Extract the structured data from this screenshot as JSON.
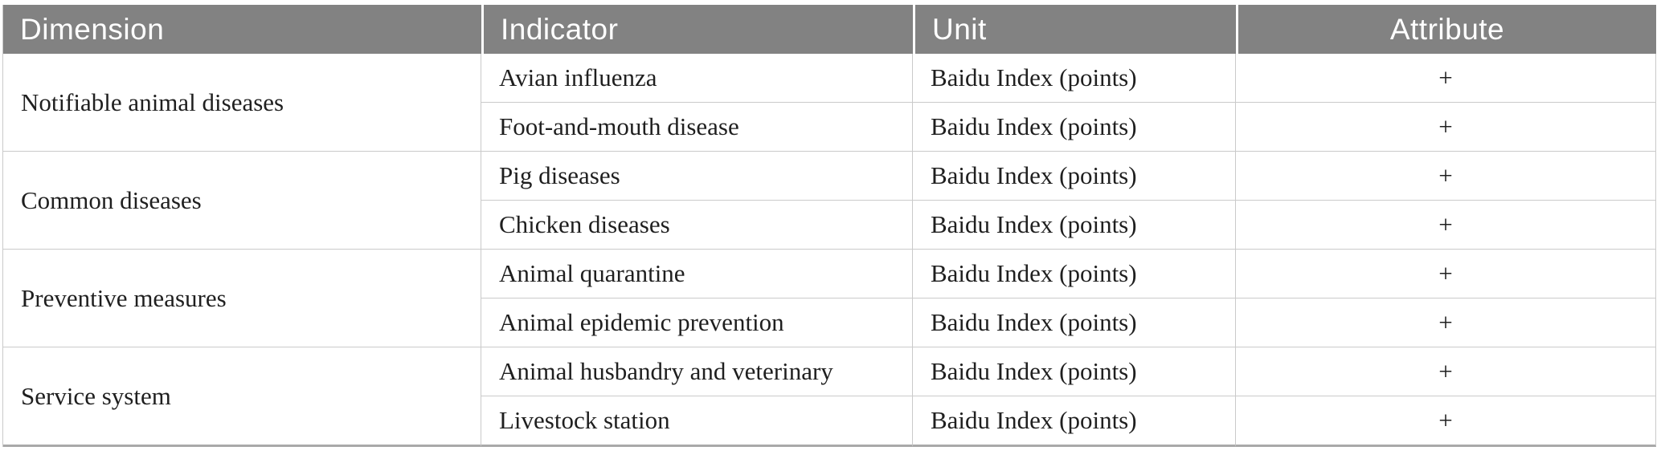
{
  "table": {
    "header": {
      "dimension": "Dimension",
      "indicator": "Indicator",
      "unit": "Unit",
      "attribute": "Attribute"
    },
    "style": {
      "header_bg": "#828282",
      "header_text_color": "#ffffff",
      "body_text_color": "#1f1f1f",
      "grid_color": "#cacaca",
      "bottom_rule_color": "#a9a9a9"
    },
    "groups": [
      {
        "dimension": "Notifiable animal diseases",
        "rows": [
          {
            "indicator": "Avian influenza",
            "unit": "Baidu Index (points)",
            "attribute": "+"
          },
          {
            "indicator": "Foot-and-mouth disease",
            "unit": "Baidu Index (points)",
            "attribute": "+"
          }
        ]
      },
      {
        "dimension": "Common diseases",
        "rows": [
          {
            "indicator": "Pig diseases",
            "unit": "Baidu Index (points)",
            "attribute": "+"
          },
          {
            "indicator": "Chicken diseases",
            "unit": "Baidu Index (points)",
            "attribute": "+"
          }
        ]
      },
      {
        "dimension": "Preventive measures",
        "rows": [
          {
            "indicator": "Animal quarantine",
            "unit": "Baidu Index (points)",
            "attribute": "+"
          },
          {
            "indicator": "Animal epidemic prevention",
            "unit": "Baidu Index (points)",
            "attribute": "+"
          }
        ]
      },
      {
        "dimension": "Service system",
        "rows": [
          {
            "indicator": "Animal husbandry and veterinary",
            "unit": "Baidu Index (points)",
            "attribute": "+"
          },
          {
            "indicator": "Livestock station",
            "unit": "Baidu Index (points)",
            "attribute": "+"
          }
        ]
      }
    ]
  }
}
